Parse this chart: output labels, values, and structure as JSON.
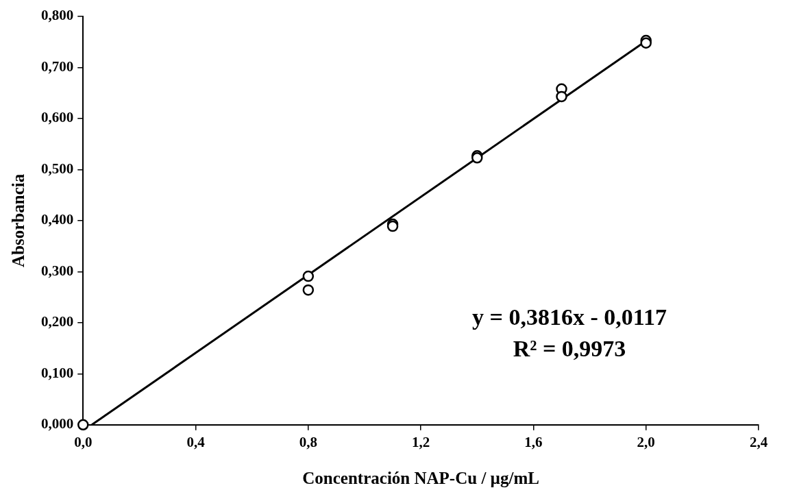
{
  "chart_data": {
    "type": "scatter",
    "xlabel": "Concentración NAP-Cu / µg/mL",
    "ylabel": "Absorbancia",
    "xlim": [
      0,
      2.4
    ],
    "xticks": [
      {
        "value": 0,
        "label": "0,0"
      },
      {
        "value": 0.4,
        "label": "0,4"
      },
      {
        "value": 0.8,
        "label": "0,8"
      },
      {
        "value": 1.2,
        "label": "1,2"
      },
      {
        "value": 1.6,
        "label": "1,6"
      },
      {
        "value": 2.0,
        "label": "2,0"
      },
      {
        "value": 2.4,
        "label": "2,4"
      }
    ],
    "ylim": [
      0,
      0.8
    ],
    "yticks": [
      {
        "value": 0,
        "label": "0,000"
      },
      {
        "value": 0.1,
        "label": "0,100"
      },
      {
        "value": 0.2,
        "label": "0,200"
      },
      {
        "value": 0.3,
        "label": "0,300"
      },
      {
        "value": 0.4,
        "label": "0,400"
      },
      {
        "value": 0.5,
        "label": "0,500"
      },
      {
        "value": 0.6,
        "label": "0,600"
      },
      {
        "value": 0.7,
        "label": "0,700"
      },
      {
        "value": 0.8,
        "label": "0,800"
      }
    ],
    "grid": false,
    "marker": "circle",
    "series": [
      {
        "color": "#000000",
        "x": [
          0,
          0.8,
          0.8,
          1.1,
          1.1,
          1.4,
          1.4,
          1.7,
          1.7,
          2.0,
          2.0
        ],
        "values": [
          0,
          0.291,
          0.264,
          0.393,
          0.389,
          0.527,
          0.523,
          0.658,
          0.643,
          0.753,
          0.748
        ]
      },
      {
        "type": "line",
        "color": "#000000",
        "marker": "none",
        "x": [
          0.031,
          2.0
        ],
        "values": [
          0,
          0.752
        ]
      }
    ],
    "annotations": [
      "y = 0,3816x - 0,0117",
      "R² = 0,9973"
    ]
  }
}
